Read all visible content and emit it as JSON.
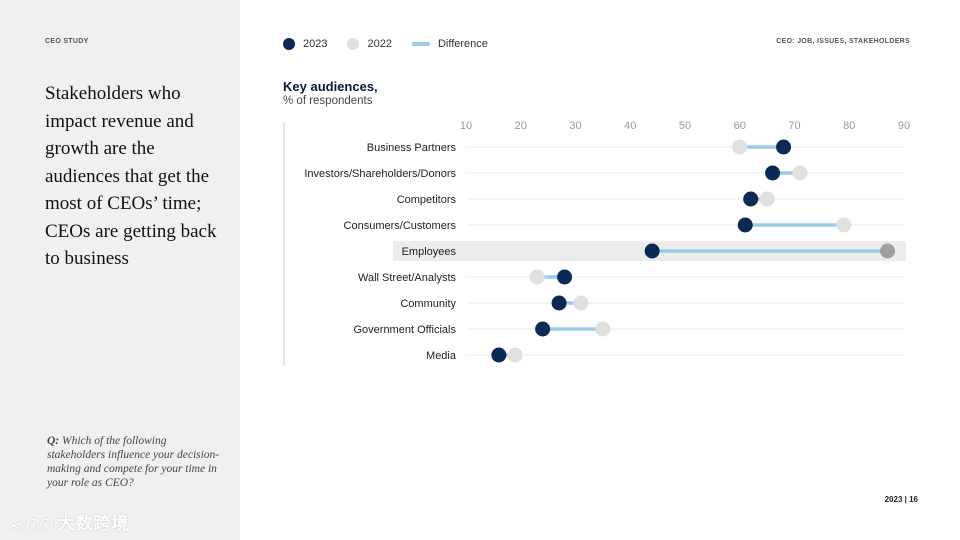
{
  "left": {
    "section_label": "CEO STUDY",
    "headline": "Stakeholders who impact revenue and growth are the audiences that get the most of CEOs’ time; CEOs are getting back to business",
    "question_prefix": "Q:",
    "question_text": "Which of the following stakeholders influence your decision-making and compete for your time in your role as CEO?",
    "watermark": "大数跨境"
  },
  "header": {
    "top_right": "CEO: JOB, ISSUES, STAKEHOLDERS"
  },
  "legend": {
    "items": [
      {
        "label": "2023",
        "color": "#0a2a55",
        "kind": "dot"
      },
      {
        "label": "2022",
        "color": "#e0e0e0",
        "kind": "dot"
      },
      {
        "label": "Difference",
        "color": "#9ccbe8",
        "kind": "line"
      }
    ]
  },
  "footer": {
    "page": "2023 | 16"
  },
  "chart_data": {
    "type": "dumbbell",
    "title": "Key audiences,",
    "subtitle": "% of respondents",
    "xlim": [
      10,
      90
    ],
    "xticks": [
      10,
      20,
      30,
      40,
      50,
      60,
      70,
      80,
      90
    ],
    "highlight": "Employees",
    "colors": {
      "y2023": "#0a2a55",
      "y2022": "#e0e0e0",
      "diff": "#9ccbe8",
      "highlight_2022": "#a0a0a0",
      "highlight_band": "#ececec"
    },
    "categories": [
      {
        "label": "Business Partners",
        "y2023": 68,
        "y2022": 60
      },
      {
        "label": "Investors/Shareholders/Donors",
        "y2023": 66,
        "y2022": 71
      },
      {
        "label": "Competitors",
        "y2023": 62,
        "y2022": 65
      },
      {
        "label": "Consumers/Customers",
        "y2023": 61,
        "y2022": 79
      },
      {
        "label": "Employees",
        "y2023": 44,
        "y2022": 87
      },
      {
        "label": "Wall Street/Analysts",
        "y2023": 28,
        "y2022": 23
      },
      {
        "label": "Community",
        "y2023": 27,
        "y2022": 31
      },
      {
        "label": "Government Officials",
        "y2023": 24,
        "y2022": 35
      },
      {
        "label": "Media",
        "y2023": 16,
        "y2022": 19
      }
    ]
  }
}
